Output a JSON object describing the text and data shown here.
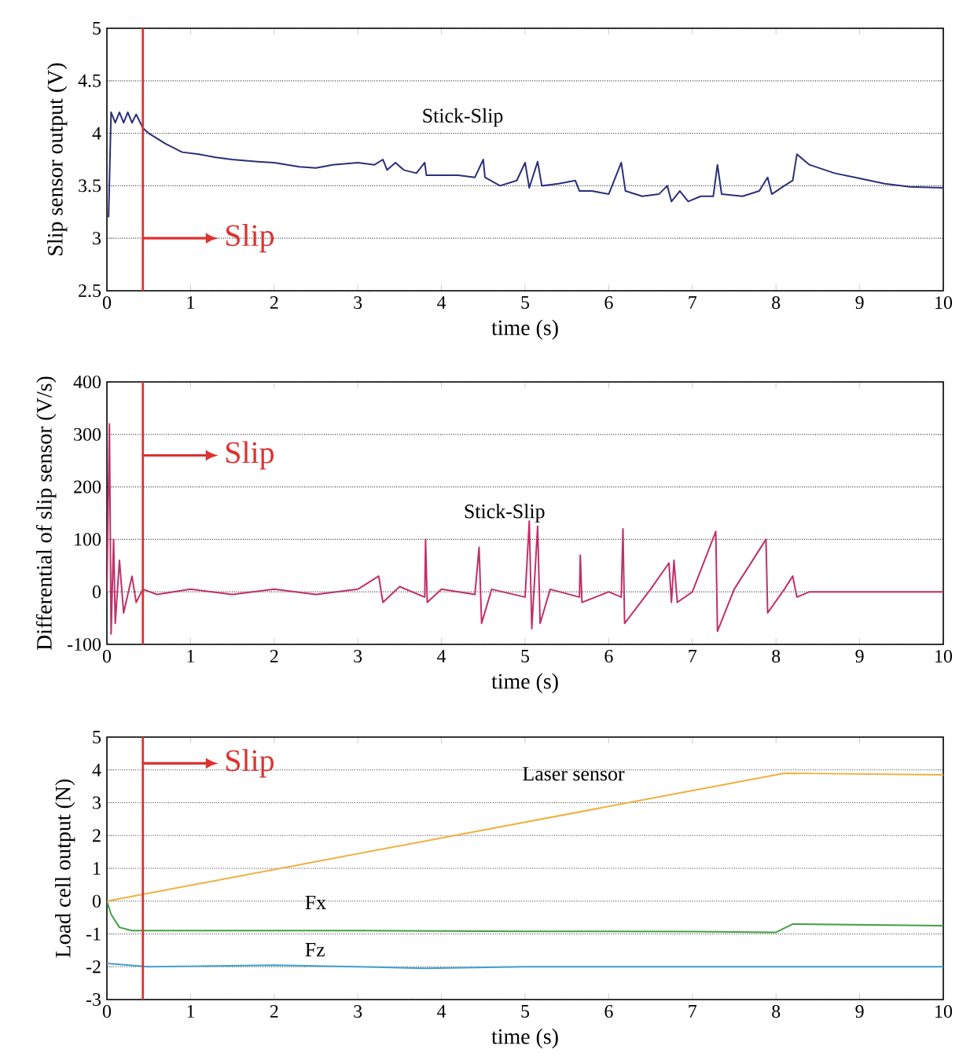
{
  "chart_data": [
    {
      "type": "line",
      "xlabel": "time (s)",
      "ylabel": "Slip sensor output (V)",
      "xlim": [
        0,
        10
      ],
      "ylim": [
        2.5,
        5
      ],
      "xticks": [
        0,
        1,
        2,
        3,
        4,
        5,
        6,
        7,
        8,
        9,
        10
      ],
      "yticks": [
        2.5,
        3,
        3.5,
        4,
        4.5,
        5
      ],
      "grid": "y",
      "ref_lines": [
        {
          "axis": "x",
          "value": 0.43,
          "label": "Slip",
          "color": "#e03030"
        }
      ],
      "annotations": [
        "Stick-Slip"
      ],
      "series": [
        {
          "color": "#2a2f7a",
          "x": [
            0.02,
            0.05,
            0.1,
            0.15,
            0.2,
            0.25,
            0.3,
            0.35,
            0.43,
            0.5,
            0.7,
            0.9,
            1.1,
            1.3,
            1.5,
            1.8,
            2.0,
            2.3,
            2.5,
            2.7,
            3.0,
            3.2,
            3.3,
            3.35,
            3.45,
            3.55,
            3.7,
            3.8,
            3.82,
            4.0,
            4.2,
            4.4,
            4.5,
            4.52,
            4.7,
            4.9,
            5.0,
            5.05,
            5.15,
            5.2,
            5.4,
            5.6,
            5.65,
            5.8,
            6.0,
            6.15,
            6.2,
            6.4,
            6.6,
            6.7,
            6.75,
            6.85,
            6.95,
            7.1,
            7.25,
            7.3,
            7.35,
            7.6,
            7.8,
            7.9,
            7.95,
            8.1,
            8.2,
            8.25,
            8.4,
            8.7,
            9.0,
            9.3,
            9.6,
            10
          ],
          "values": [
            3.2,
            4.2,
            4.1,
            4.2,
            4.1,
            4.2,
            4.1,
            4.18,
            4.05,
            4.0,
            3.9,
            3.82,
            3.8,
            3.77,
            3.75,
            3.73,
            3.72,
            3.68,
            3.67,
            3.7,
            3.72,
            3.7,
            3.75,
            3.65,
            3.72,
            3.65,
            3.62,
            3.72,
            3.6,
            3.6,
            3.6,
            3.58,
            3.75,
            3.58,
            3.5,
            3.55,
            3.72,
            3.48,
            3.73,
            3.5,
            3.52,
            3.55,
            3.45,
            3.45,
            3.42,
            3.72,
            3.45,
            3.4,
            3.42,
            3.5,
            3.35,
            3.45,
            3.35,
            3.4,
            3.4,
            3.7,
            3.42,
            3.4,
            3.45,
            3.58,
            3.42,
            3.5,
            3.55,
            3.8,
            3.7,
            3.62,
            3.57,
            3.52,
            3.49,
            3.48
          ]
        }
      ]
    },
    {
      "type": "line",
      "xlabel": "time (s)",
      "ylabel": "Differential of slip sensor (V/s)",
      "xlim": [
        0,
        10
      ],
      "ylim": [
        -100,
        400
      ],
      "xticks": [
        0,
        1,
        2,
        3,
        4,
        5,
        6,
        7,
        8,
        9,
        10
      ],
      "yticks": [
        -100,
        0,
        100,
        200,
        300,
        400
      ],
      "grid": "y",
      "ref_lines": [
        {
          "axis": "x",
          "value": 0.43,
          "label": "Slip",
          "color": "#e03030"
        }
      ],
      "annotations": [
        "Stick-Slip"
      ],
      "series": [
        {
          "color": "#c0306a",
          "x": [
            0,
            0.03,
            0.05,
            0.08,
            0.1,
            0.15,
            0.2,
            0.3,
            0.35,
            0.43,
            0.6,
            1,
            1.5,
            2,
            2.5,
            3,
            3.25,
            3.3,
            3.5,
            3.8,
            3.81,
            3.83,
            4,
            4.4,
            4.45,
            4.48,
            4.6,
            5.0,
            5.05,
            5.08,
            5.15,
            5.18,
            5.3,
            5.65,
            5.66,
            5.68,
            6.0,
            6.15,
            6.17,
            6.19,
            6.5,
            6.72,
            6.75,
            6.78,
            6.82,
            7.0,
            7.28,
            7.3,
            7.5,
            7.88,
            7.9,
            8.1,
            8.2,
            8.25,
            8.4,
            9,
            10
          ],
          "values": [
            0,
            320,
            -80,
            100,
            -60,
            60,
            -40,
            30,
            -20,
            5,
            -5,
            5,
            -5,
            5,
            -5,
            5,
            30,
            -20,
            10,
            -10,
            100,
            -20,
            5,
            -5,
            85,
            -60,
            5,
            -10,
            135,
            -70,
            125,
            -60,
            5,
            -10,
            70,
            -20,
            0,
            -10,
            120,
            -60,
            5,
            55,
            -20,
            60,
            -20,
            0,
            115,
            -75,
            5,
            100,
            -40,
            5,
            30,
            -10,
            0,
            0,
            0
          ]
        }
      ]
    },
    {
      "type": "line",
      "xlabel": "time (s)",
      "ylabel": "Load cell output (N)",
      "xlim": [
        0,
        10
      ],
      "ylim": [
        -3,
        5
      ],
      "xticks": [
        0,
        1,
        2,
        3,
        4,
        5,
        6,
        7,
        8,
        9,
        10
      ],
      "yticks": [
        -3,
        -2,
        -1,
        0,
        1,
        2,
        3,
        4,
        5
      ],
      "grid": "y",
      "ref_lines": [
        {
          "axis": "x",
          "value": 0.43,
          "label": "Slip",
          "color": "#e03030"
        }
      ],
      "series": [
        {
          "name": "Laser sensor",
          "color": "#f0b040",
          "x": [
            0,
            8.1,
            10
          ],
          "values": [
            0,
            3.9,
            3.85
          ]
        },
        {
          "name": "Fx",
          "color": "#40a040",
          "x": [
            0,
            0.05,
            0.15,
            0.3,
            1,
            3,
            5,
            7,
            8,
            8.2,
            10
          ],
          "values": [
            0,
            -0.4,
            -0.8,
            -0.9,
            -0.9,
            -0.9,
            -0.92,
            -0.93,
            -0.95,
            -0.7,
            -0.75
          ]
        },
        {
          "name": "Fz",
          "color": "#40a0d0",
          "x": [
            0,
            0.5,
            2,
            3,
            3.8,
            5,
            8,
            10
          ],
          "values": [
            -1.9,
            -2.0,
            -1.95,
            -2.0,
            -2.05,
            -2.0,
            -2.0,
            -2.0
          ]
        }
      ]
    }
  ]
}
